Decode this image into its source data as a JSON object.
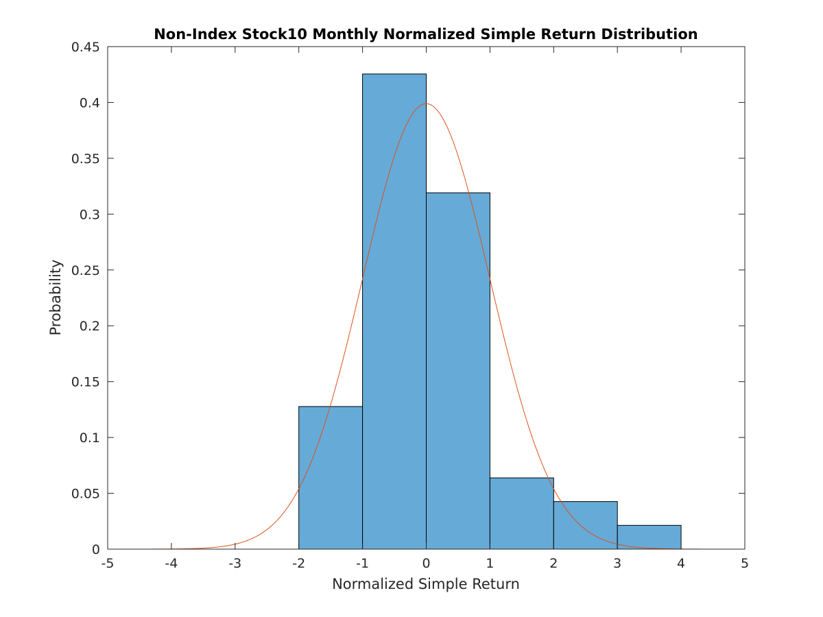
{
  "chart_data": {
    "type": "bar",
    "title": "Non-Index Stock10 Monthly Normalized Simple Return Distribution",
    "xlabel": "Normalized Simple Return",
    "ylabel": "Probability",
    "xlim": [
      -5,
      5
    ],
    "ylim": [
      0,
      0.45
    ],
    "x_ticks": [
      "-5",
      "-4",
      "-3",
      "-2",
      "-1",
      "0",
      "1",
      "2",
      "3",
      "4",
      "5"
    ],
    "y_ticks": [
      "0",
      "0.05",
      "0.1",
      "0.15",
      "0.2",
      "0.25",
      "0.3",
      "0.35",
      "0.4",
      "0.45"
    ],
    "grid": false,
    "legend": "none",
    "bins": [
      {
        "left": -2,
        "right": -1,
        "value": 0.1277
      },
      {
        "left": -1,
        "right": 0,
        "value": 0.4255
      },
      {
        "left": 0,
        "right": 1,
        "value": 0.3191
      },
      {
        "left": 1,
        "right": 2,
        "value": 0.0638
      },
      {
        "left": 2,
        "right": 3,
        "value": 0.0426
      },
      {
        "left": 3,
        "right": 4,
        "value": 0.0213
      }
    ],
    "overlay": {
      "type": "line",
      "description": "standard normal probability density",
      "mean": 0,
      "std": 1
    },
    "colors": {
      "bar_fill": "#66aad8",
      "bar_edge": "#000000",
      "curve": "#d95319",
      "axis": "#262626"
    }
  }
}
